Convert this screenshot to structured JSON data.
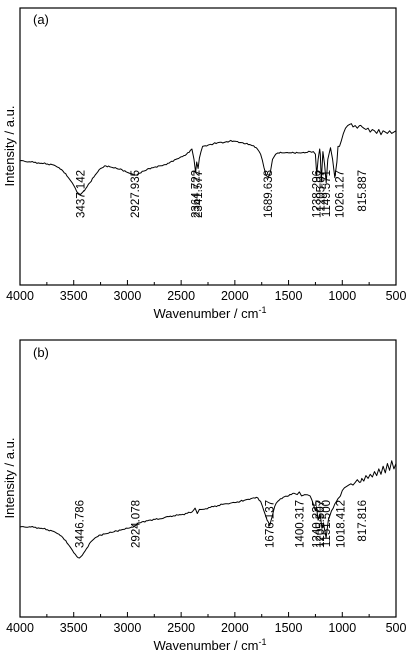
{
  "chart_data": [
    {
      "type": "line",
      "panel_label": "(a)",
      "xlabel": "Wavenumber / cm",
      "xlabel_sup": "-1",
      "ylabel": "Intensity / a.u.",
      "xlim": [
        4000,
        500
      ],
      "x_reversed": true,
      "ylim": [
        0,
        100
      ],
      "y_ticks_labeled": false,
      "grid": false,
      "x_ticks": [
        "4000",
        "3500",
        "3000",
        "2500",
        "2000",
        "1500",
        "1000",
        "500"
      ],
      "series": [
        {
          "x": [
            4000,
            3900,
            3800,
            3700,
            3650,
            3600,
            3550,
            3500,
            3470,
            3437,
            3400,
            3350,
            3300,
            3250,
            3200,
            3150,
            3100,
            3050,
            3000,
            2960,
            2928,
            2900,
            2850,
            2800,
            2750,
            2700,
            2650,
            2600,
            2550,
            2500,
            2450,
            2400,
            2380,
            2365,
            2355,
            2342,
            2330,
            2300,
            2250,
            2200,
            2150,
            2100,
            2050,
            2000,
            1950,
            1900,
            1850,
            1800,
            1760,
            1730,
            1710,
            1690,
            1670,
            1650,
            1620,
            1600,
            1550,
            1500,
            1450,
            1400,
            1350,
            1300,
            1270,
            1250,
            1238,
            1225,
            1210,
            1205,
            1195,
            1180,
            1165,
            1150,
            1135,
            1110,
            1090,
            1070,
            1050,
            1040,
            1026,
            1010,
            990,
            970,
            950,
            930,
            900,
            880,
            860,
            840,
            816,
            800,
            780,
            760,
            740,
            720,
            700,
            680,
            660,
            640,
            620,
            600,
            580,
            560,
            540,
            520,
            500
          ],
          "y": [
            61,
            60,
            59,
            58,
            56,
            53,
            48,
            42,
            37,
            35,
            38,
            44,
            50,
            55,
            57,
            56,
            55,
            54,
            52,
            51,
            50,
            51,
            53,
            55,
            56,
            57,
            58,
            60,
            62,
            64,
            66,
            70,
            62,
            52,
            60,
            55,
            63,
            72,
            73,
            74,
            75,
            75,
            76,
            76,
            75,
            74,
            73,
            71,
            66,
            56,
            50,
            48,
            52,
            62,
            66,
            67,
            67,
            67,
            67,
            67,
            67,
            68,
            68,
            66,
            50,
            62,
            70,
            66,
            45,
            68,
            58,
            44,
            62,
            71,
            62,
            48,
            60,
            72,
            72,
            76,
            82,
            86,
            88,
            89,
            87,
            88,
            86,
            88,
            87,
            86,
            85,
            86,
            83,
            85,
            84,
            82,
            85,
            81,
            84,
            83,
            82,
            84,
            82,
            83,
            84
          ]
        }
      ],
      "annotations": [
        "3437.142",
        "2927.935",
        "2364.722",
        "2341.577",
        "1689.638",
        "1238.296",
        "1205.07",
        "1149.571",
        "1026.127",
        "815.887"
      ],
      "annotation_x": [
        3437,
        2928,
        2365,
        2342,
        1690,
        1238,
        1205,
        1150,
        1026,
        816
      ]
    },
    {
      "type": "line",
      "panel_label": "(b)",
      "xlabel": "Wavenumber / cm",
      "xlabel_sup": "-1",
      "ylabel": "Intensity / a.u.",
      "xlim": [
        4000,
        500
      ],
      "x_reversed": true,
      "ylim": [
        0,
        100
      ],
      "y_ticks_labeled": false,
      "grid": false,
      "x_ticks": [
        "4000",
        "3500",
        "3000",
        "2500",
        "2000",
        "1500",
        "1000",
        "500"
      ],
      "series": [
        {
          "x": [
            4000,
            3900,
            3800,
            3700,
            3650,
            3600,
            3550,
            3500,
            3470,
            3447,
            3420,
            3380,
            3340,
            3300,
            3250,
            3200,
            3150,
            3100,
            3050,
            3000,
            2960,
            2924,
            2900,
            2850,
            2800,
            2700,
            2600,
            2500,
            2400,
            2370,
            2350,
            2330,
            2300,
            2200,
            2100,
            2000,
            1950,
            1900,
            1850,
            1800,
            1760,
            1730,
            1700,
            1676,
            1655,
            1630,
            1600,
            1550,
            1500,
            1450,
            1420,
            1400,
            1380,
            1350,
            1300,
            1270,
            1250,
            1240,
            1225,
            1205,
            1190,
            1175,
            1151,
            1130,
            1100,
            1070,
            1040,
            1018,
            1000,
            980,
            960,
            940,
            920,
            900,
            880,
            860,
            840,
            818,
            800,
            780,
            760,
            740,
            720,
            700,
            680,
            660,
            640,
            620,
            600,
            580,
            560,
            540,
            520,
            500
          ],
          "y": [
            43,
            43,
            42,
            40,
            38,
            35,
            30,
            24,
            21,
            20,
            22,
            27,
            32,
            35,
            37,
            38,
            39,
            40,
            41,
            42,
            43,
            44,
            46,
            47,
            48,
            49,
            51,
            52,
            54,
            57,
            53,
            56,
            56,
            58,
            60,
            61,
            62,
            63,
            64,
            65,
            62,
            55,
            48,
            44,
            50,
            58,
            62,
            65,
            66,
            68,
            67,
            69,
            66,
            67,
            66,
            60,
            55,
            58,
            48,
            52,
            42,
            46,
            35,
            48,
            55,
            60,
            64,
            66,
            70,
            72,
            73,
            74,
            75,
            74,
            76,
            78,
            76,
            79,
            77,
            81,
            79,
            82,
            80,
            84,
            81,
            86,
            82,
            88,
            83,
            90,
            85,
            92,
            86,
            90
          ]
        }
      ],
      "annotations": [
        "3446.786",
        "2924.078",
        "1676.137",
        "1400.317",
        "1240.225",
        "1205.507",
        "1151.500",
        "1018.412",
        "817.816"
      ],
      "annotation_x": [
        3447,
        2924,
        1676,
        1400,
        1240,
        1206,
        1152,
        1018,
        818
      ]
    }
  ]
}
